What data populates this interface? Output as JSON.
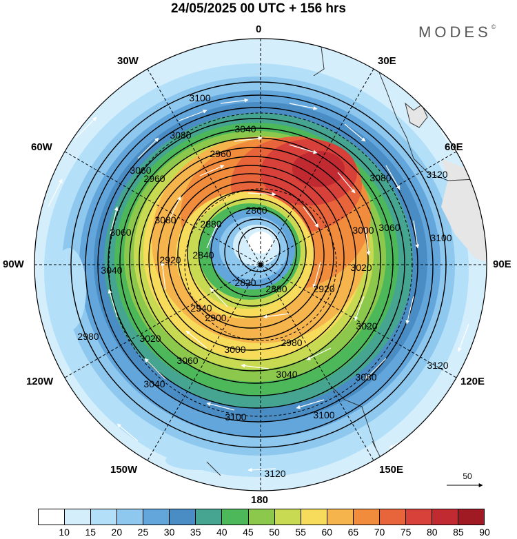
{
  "title": "24/05/2025  00 UTC  + 156 hrs",
  "brand": "MODES",
  "brand_mark": "©",
  "longitude_labels": {
    "n0": "0",
    "e30": "30E",
    "e60": "60E",
    "e90": "90E",
    "e120": "120E",
    "e150": "150E",
    "s180": "180",
    "w150": "150W",
    "w120": "120W",
    "w90": "90W",
    "w60": "60W",
    "w30": "30W"
  },
  "contour_labels": [
    "3100",
    "3080",
    "3040",
    "2960",
    "3060",
    "2960",
    "2860",
    "3080",
    "3120",
    "3060",
    "3000",
    "3100",
    "2880",
    "2840",
    "2920",
    "3020",
    "2820",
    "2880",
    "2900",
    "2920",
    "2940",
    "2980",
    "3020",
    "3040",
    "3000",
    "3060",
    "3040",
    "3080",
    "3120",
    "3100",
    "3100",
    "3120",
    "3060",
    "3040",
    "3020",
    "3080",
    "2980"
  ],
  "reference_vector_label": "50",
  "colorbar": {
    "labels": [
      "10",
      "15",
      "20",
      "25",
      "30",
      "35",
      "40",
      "45",
      "50",
      "55",
      "60",
      "65",
      "70",
      "75",
      "80",
      "85",
      "90"
    ],
    "colors": [
      "#ffffff",
      "#d4eefc",
      "#b3e0f8",
      "#8fc8ee",
      "#62a6dc",
      "#4a8cc4",
      "#45a590",
      "#4cb85a",
      "#8cc84c",
      "#c8da52",
      "#f6dc5a",
      "#f6b44c",
      "#f08c3c",
      "#e8643a",
      "#d8403a",
      "#c02a30",
      "#a01a24"
    ]
  }
}
